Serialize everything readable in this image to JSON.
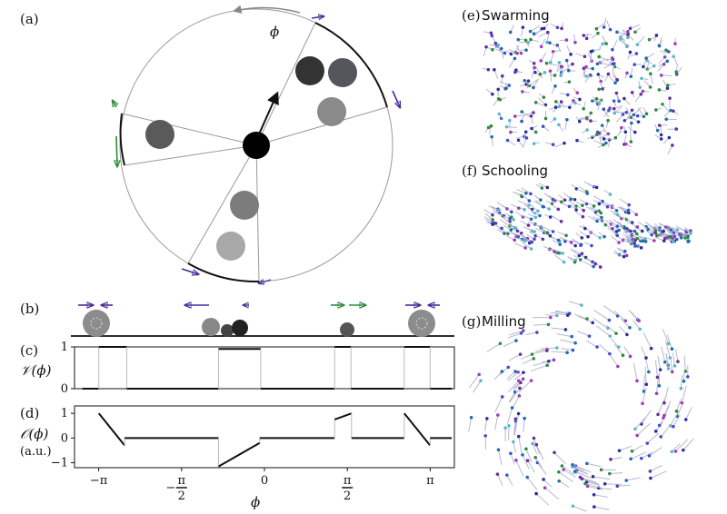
{
  "panels": {
    "a": {
      "label": "(a)",
      "phi_label": "ϕ"
    },
    "b": {
      "label": "(b)"
    },
    "c": {
      "label": "(c)",
      "ylabel": "𝒱(ϕ)"
    },
    "d": {
      "label": "(d)",
      "ylabel": "𝒪(ϕ)",
      "unit": "(a.u.)"
    },
    "e": {
      "label": "(e)",
      "title": "Swarming"
    },
    "f": {
      "label": "(f)",
      "title": "Schooling"
    },
    "g": {
      "label": "(g)",
      "title": "Milling"
    }
  },
  "xaxis": {
    "label": "ϕ",
    "ticks": [
      {
        "text": "−π",
        "frac": false
      },
      {
        "num": "π",
        "den": "2",
        "sign": "−",
        "frac": true
      },
      {
        "text": "0",
        "frac": false
      },
      {
        "num": "π",
        "den": "2",
        "sign": "",
        "frac": true
      },
      {
        "text": "π",
        "frac": false
      }
    ]
  },
  "colors": {
    "purple": "#4b2a9a",
    "green": "#2e8b3a",
    "grey": "#888888",
    "black": "#111111"
  },
  "chart_data": [
    {
      "type": "line",
      "title": "",
      "ylabel": "𝒱(ϕ)",
      "xlim": [
        -3.6,
        3.6
      ],
      "ylim": [
        0,
        1
      ],
      "yticks": [
        "0",
        "1"
      ],
      "segments": [
        {
          "x": [
            -3.45,
            -3.14
          ],
          "y": [
            0,
            0
          ]
        },
        {
          "x": [
            -3.14,
            -2.61
          ],
          "y": [
            1,
            1
          ]
        },
        {
          "x": [
            -2.61,
            -0.87
          ],
          "y": [
            0,
            0
          ]
        },
        {
          "x": [
            -0.87,
            -0.07
          ],
          "y": [
            0.95,
            0.95
          ]
        },
        {
          "x": [
            -0.07,
            1.33
          ],
          "y": [
            0,
            0
          ]
        },
        {
          "x": [
            1.33,
            1.64
          ],
          "y": [
            1,
            1
          ]
        },
        {
          "x": [
            1.64,
            2.65
          ],
          "y": [
            0,
            0
          ]
        },
        {
          "x": [
            2.65,
            3.14
          ],
          "y": [
            1,
            1
          ]
        },
        {
          "x": [
            3.14,
            3.55
          ],
          "y": [
            0,
            0
          ]
        }
      ]
    },
    {
      "type": "line",
      "title": "",
      "ylabel": "𝒪(ϕ)",
      "xlim": [
        -3.6,
        3.6
      ],
      "ylim": [
        -1.2,
        1.3
      ],
      "yticks": [
        "−1",
        "0",
        "1"
      ],
      "segments": [
        {
          "x": [
            -3.14,
            -2.65
          ],
          "y": [
            1,
            -0.3
          ]
        },
        {
          "x": [
            -2.65,
            -0.87
          ],
          "y": [
            0,
            0
          ]
        },
        {
          "x": [
            -0.87,
            -0.09
          ],
          "y": [
            -1.15,
            -0.2
          ]
        },
        {
          "x": [
            -0.09,
            1.33
          ],
          "y": [
            0,
            0
          ]
        },
        {
          "x": [
            1.33,
            1.65
          ],
          "y": [
            0.75,
            1.0
          ]
        },
        {
          "x": [
            1.65,
            2.65
          ],
          "y": [
            0,
            0
          ]
        },
        {
          "x": [
            2.65,
            3.14
          ],
          "y": [
            1.0,
            -0.3
          ]
        },
        {
          "x": [
            3.14,
            3.55
          ],
          "y": [
            0,
            0
          ]
        }
      ]
    }
  ]
}
